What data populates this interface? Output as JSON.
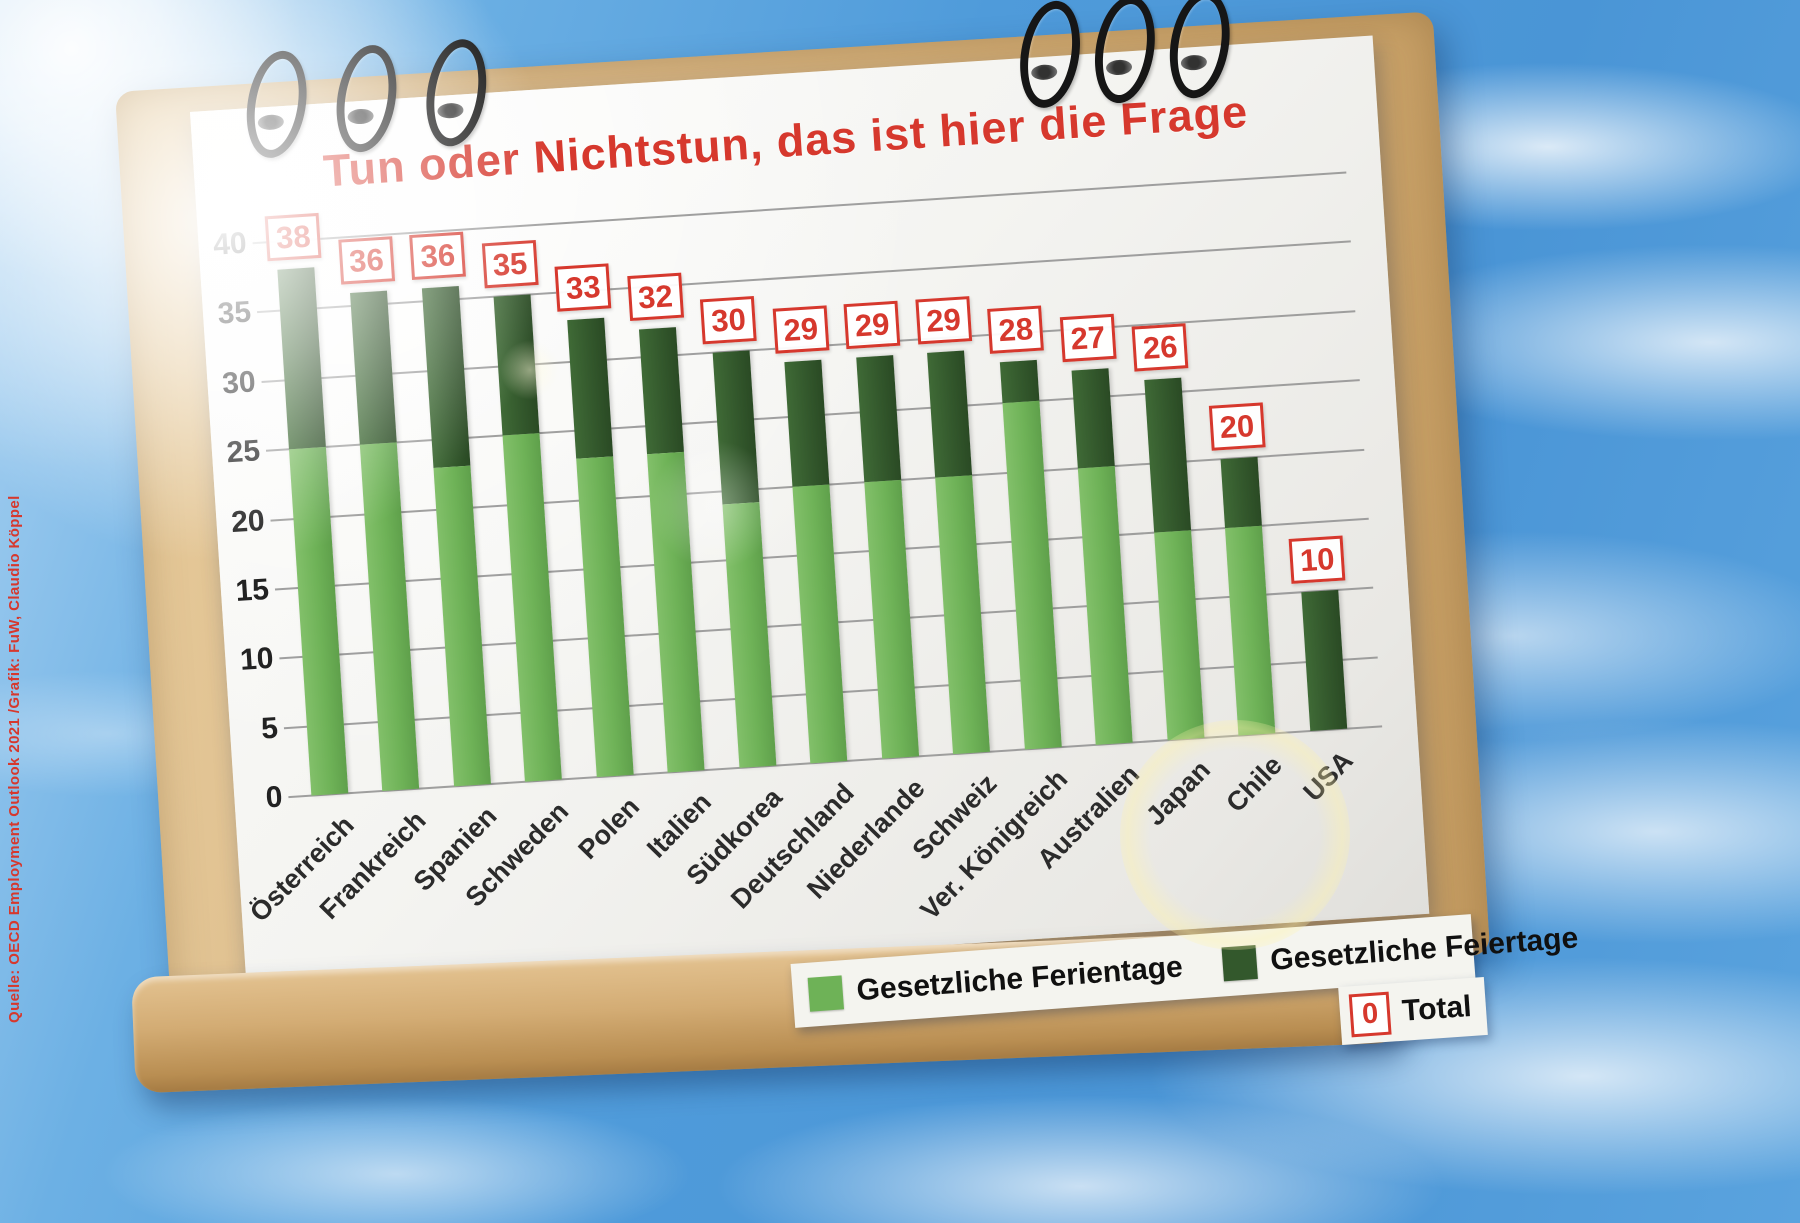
{
  "title": "Tun oder Nichtstun, das ist hier die Frage",
  "source_credit": "Quelle: OECD Employment Outlook 2021 /Grafik: FuW, Claudio Köppel",
  "legend": {
    "vacation_label": "Gesetzliche Ferientage",
    "holiday_label": "Gesetzliche Feiertage",
    "total_symbol": "0",
    "total_label": "Total"
  },
  "colors": {
    "vacation_green": "#6eb257",
    "holiday_green": "#33582c",
    "accent_red": "#d6382d",
    "page_white": "#f4f4f1",
    "stand_tan": "#d3ac74"
  },
  "chart_data": {
    "type": "bar",
    "stacked": true,
    "title": "Tun oder Nichtstun, das ist hier die Frage",
    "xlabel": "",
    "ylabel": "",
    "ylim": [
      0,
      40
    ],
    "yticks": [
      0,
      5,
      10,
      15,
      20,
      25,
      30,
      35,
      40
    ],
    "grid": true,
    "legend_position": "bottom-right",
    "categories": [
      "Österreich",
      "Frankreich",
      "Spanien",
      "Schweden",
      "Polen",
      "Italien",
      "Südkorea",
      "Deutschland",
      "Niederlande",
      "Schweiz",
      "Ver. Königreich",
      "Australien",
      "Japan",
      "Chile",
      "USA"
    ],
    "series": [
      {
        "name": "Gesetzliche Ferientage",
        "color": "#6eb257",
        "values": [
          25,
          25,
          23,
          25,
          23,
          23,
          19,
          20,
          20,
          20,
          25,
          20,
          15,
          15,
          0
        ]
      },
      {
        "name": "Gesetzliche Feiertage",
        "color": "#33582c",
        "values": [
          13,
          11,
          13,
          10,
          10,
          9,
          11,
          9,
          9,
          9,
          3,
          7,
          11,
          5,
          10
        ]
      }
    ],
    "totals": [
      38,
      36,
      36,
      35,
      33,
      32,
      30,
      29,
      29,
      29,
      28,
      27,
      26,
      20,
      10
    ]
  }
}
